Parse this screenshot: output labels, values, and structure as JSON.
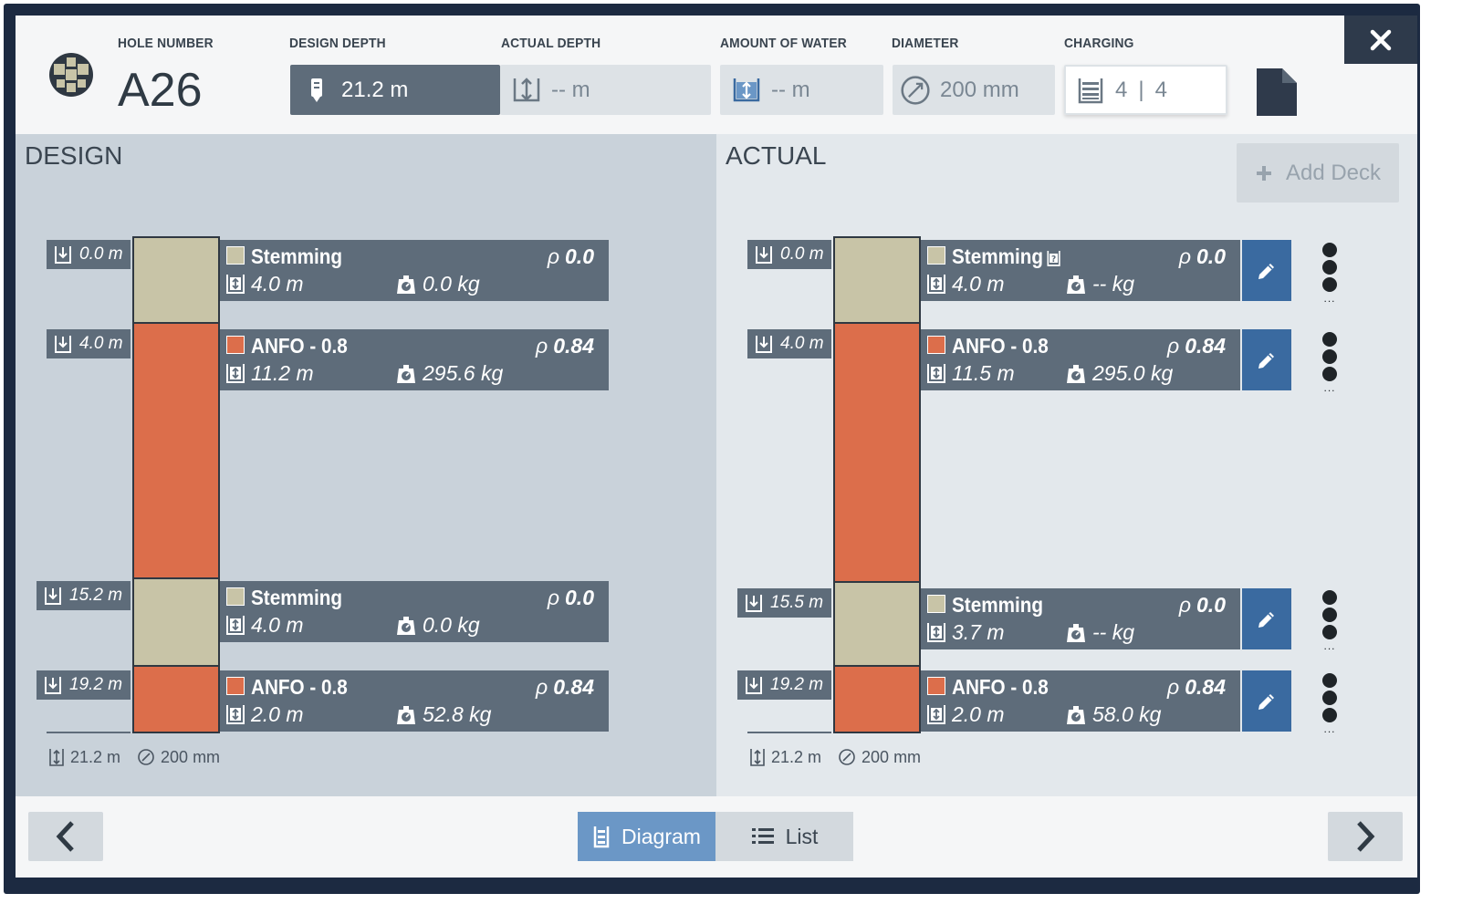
{
  "header": {
    "hole_number_label": "HOLE NUMBER",
    "hole_number": "A26",
    "design_depth_label": "DESIGN DEPTH",
    "design_depth": "21.2 m",
    "actual_depth_label": "ACTUAL DEPTH",
    "actual_depth": "-- m",
    "water_label": "AMOUNT OF WATER",
    "water": "-- m",
    "diameter_label": "DIAMETER",
    "diameter": "200 mm",
    "charging_label": "CHARGING",
    "charging_a": "4",
    "charging_sep": "|",
    "charging_b": "4"
  },
  "design": {
    "title": "DESIGN",
    "depth_markers": [
      "0.0 m",
      "4.0 m",
      "15.2 m",
      "19.2 m"
    ],
    "decks": [
      {
        "name": "Stemming",
        "rho": "0.0",
        "length": "4.0 m",
        "mass": "0.0 kg",
        "type": "stemming"
      },
      {
        "name": "ANFO - 0.8",
        "rho": "0.84",
        "length": "11.2 m",
        "mass": "295.6 kg",
        "type": "anfo"
      },
      {
        "name": "Stemming",
        "rho": "0.0",
        "length": "4.0 m",
        "mass": "0.0 kg",
        "type": "stemming"
      },
      {
        "name": "ANFO - 0.8",
        "rho": "0.84",
        "length": "2.0 m",
        "mass": "52.8 kg",
        "type": "anfo"
      }
    ],
    "footer_depth": "21.2 m",
    "footer_diameter": "200 mm"
  },
  "actual": {
    "title": "ACTUAL",
    "add_deck_label": "Add Deck",
    "depth_markers": [
      "0.0 m",
      "4.0 m",
      "15.5 m",
      "19.2 m"
    ],
    "decks": [
      {
        "name": "Stemming",
        "rho": "0.0",
        "length": "4.0 m",
        "mass": "-- kg",
        "type": "stemming"
      },
      {
        "name": "ANFO - 0.8",
        "rho": "0.84",
        "length": "11.5 m",
        "mass": "295.0 kg",
        "type": "anfo"
      },
      {
        "name": "Stemming",
        "rho": "0.0",
        "length": "3.7 m",
        "mass": "-- kg",
        "type": "stemming"
      },
      {
        "name": "ANFO - 0.8",
        "rho": "0.84",
        "length": "2.0 m",
        "mass": "58.0 kg",
        "type": "anfo"
      }
    ],
    "more_label": "...",
    "footer_depth": "21.2 m",
    "footer_diameter": "200 mm"
  },
  "bottom": {
    "diagram_label": "Diagram",
    "list_label": "List"
  },
  "rho_symbol": "ρ",
  "colors": {
    "stemming": "#c8c4a7",
    "anfo": "#dc6e4b",
    "accent_blue": "#3a6aa0",
    "toggle_on": "#6b97c6"
  }
}
